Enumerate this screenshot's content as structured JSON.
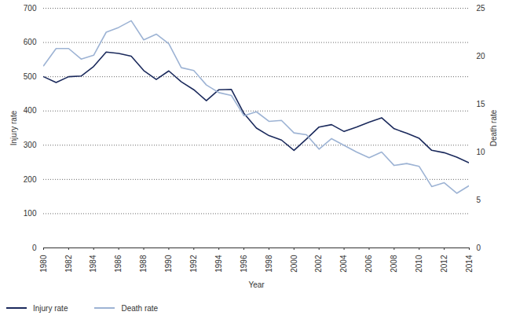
{
  "chart_data": {
    "type": "line",
    "x": [
      1980,
      1981,
      1982,
      1983,
      1984,
      1985,
      1986,
      1987,
      1988,
      1989,
      1990,
      1991,
      1992,
      1993,
      1994,
      1995,
      1996,
      1997,
      1998,
      1999,
      2000,
      2001,
      2002,
      2003,
      2004,
      2005,
      2006,
      2007,
      2008,
      2009,
      2010,
      2011,
      2012,
      2013,
      2014
    ],
    "series": [
      {
        "name": "Injury rate",
        "color": "#1b2a5c",
        "values": [
          500,
          483,
          500,
          502,
          530,
          572,
          568,
          560,
          518,
          492,
          517,
          485,
          462,
          430,
          462,
          463,
          393,
          350,
          328,
          315,
          285,
          318,
          353,
          360,
          340,
          353,
          367,
          380,
          348,
          335,
          320,
          285,
          278,
          265,
          248
        ]
      },
      {
        "name": "Death rate",
        "color": "#9db3d4",
        "axis": "y2",
        "values": [
          19.0,
          20.8,
          20.8,
          19.7,
          20.1,
          22.5,
          23.0,
          23.7,
          21.7,
          22.3,
          21.3,
          18.8,
          18.5,
          17.0,
          16.2,
          15.9,
          13.8,
          14.2,
          13.2,
          13.3,
          12.0,
          11.8,
          10.3,
          11.4,
          10.7,
          10.0,
          9.4,
          10.0,
          8.6,
          8.8,
          8.5,
          6.4,
          6.8,
          5.7,
          6.5
        ]
      }
    ],
    "x_label": "Year",
    "y_label": "Injury rate",
    "y2_label": "Death rate",
    "xlim": [
      1980,
      2014
    ],
    "xticks": [
      1980,
      1982,
      1984,
      1986,
      1988,
      1990,
      1992,
      1994,
      1996,
      1998,
      2000,
      2002,
      2004,
      2006,
      2008,
      2010,
      2012,
      2014
    ],
    "ylim": [
      0,
      700
    ],
    "yticks": [
      0,
      100,
      200,
      300,
      400,
      500,
      600,
      700
    ],
    "y2lim": [
      0,
      25
    ],
    "y2ticks": [
      0,
      5,
      10,
      15,
      20,
      25
    ],
    "grid": true,
    "legend": "bottom"
  }
}
